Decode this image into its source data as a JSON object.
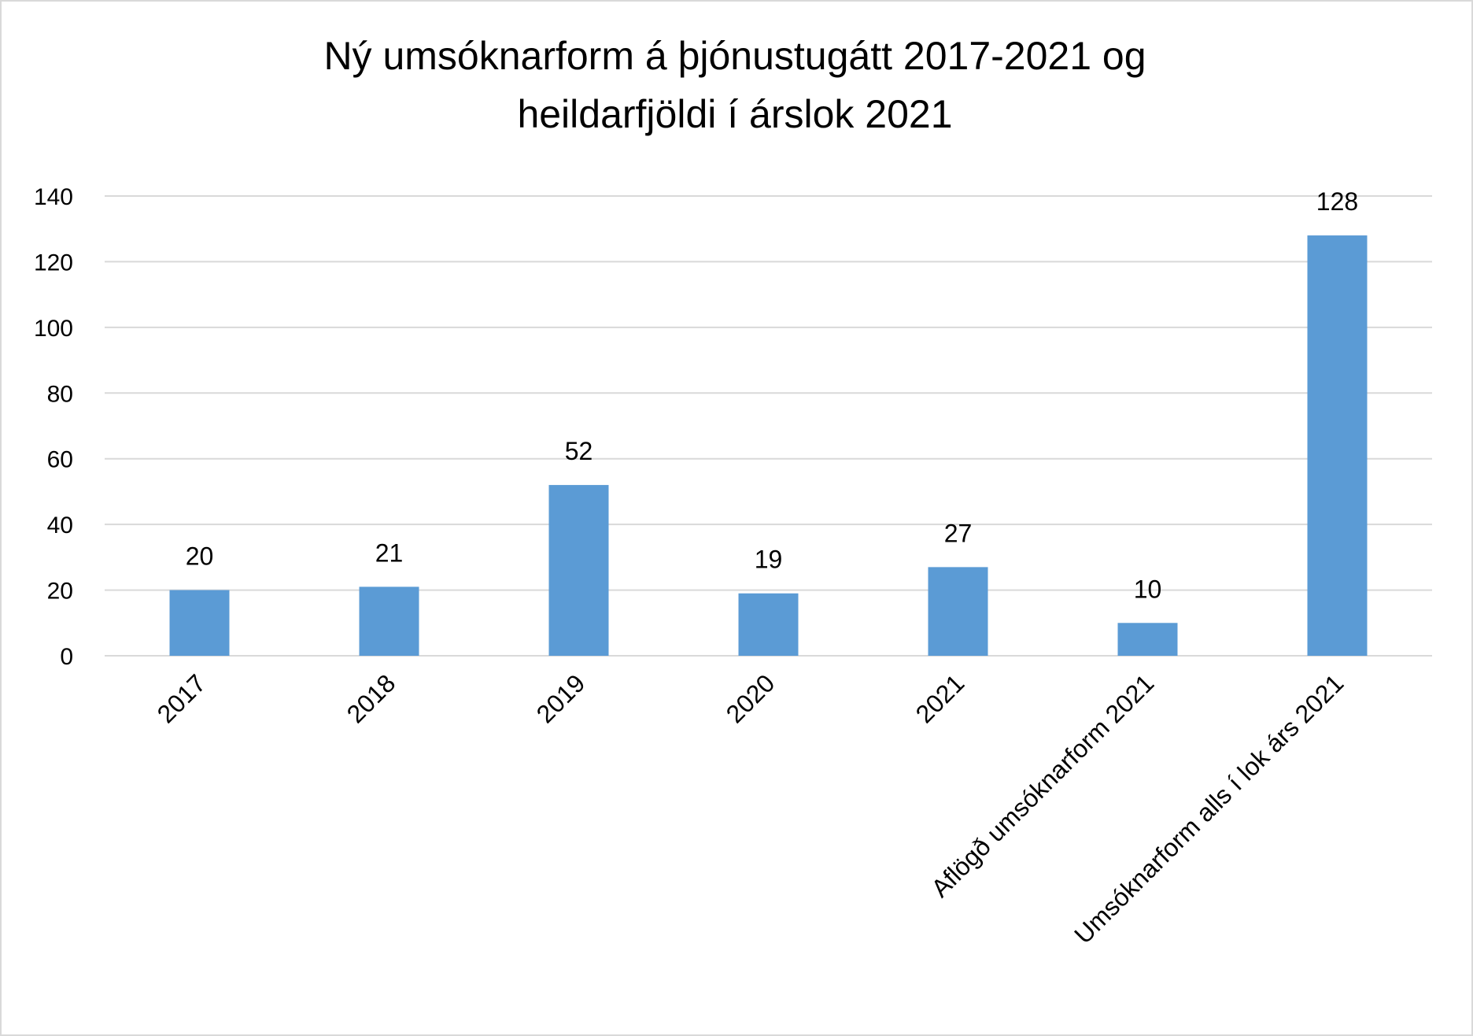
{
  "chart_data": {
    "type": "bar",
    "title": [
      "Ný umsóknarform á þjónustugátt 2017-2021 og",
      "heildarfjöldi í árslok 2021"
    ],
    "categories": [
      "2017",
      "2018",
      "2019",
      "2020",
      "2021",
      "Aflögð umsóknarform 2021",
      "Umsóknarform alls í lok árs 2021"
    ],
    "values": [
      20,
      21,
      52,
      19,
      27,
      10,
      128
    ],
    "data_labels": [
      "20",
      "21",
      "52",
      "19",
      "27",
      "10",
      "128"
    ],
    "ylim": [
      0,
      140
    ],
    "yticks": [
      0,
      20,
      40,
      60,
      80,
      100,
      120,
      140
    ],
    "bar_color": "#5b9bd5",
    "grid": true,
    "legend": "none"
  }
}
